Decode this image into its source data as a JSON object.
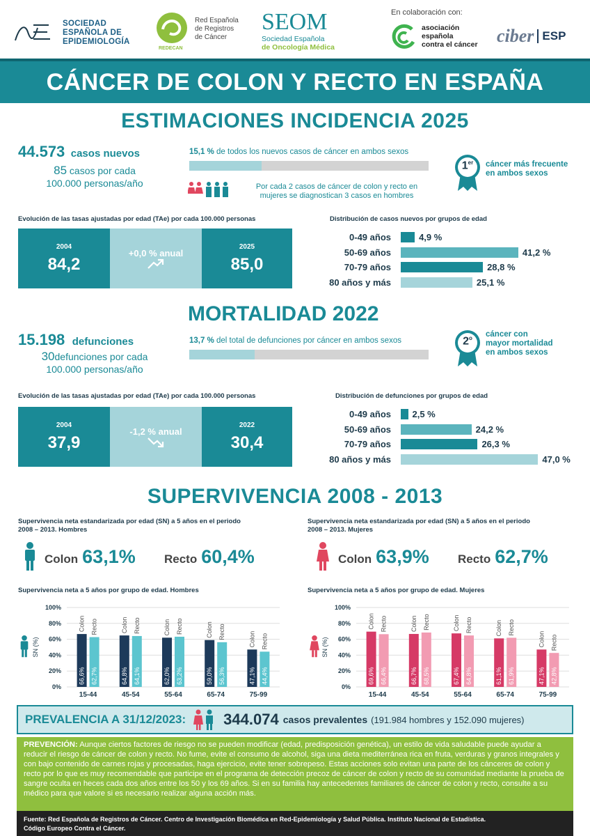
{
  "logos": {
    "see": [
      "SOCIEDAD",
      "ESPAÑOLA DE",
      "EPIDEMIOLOGÍA"
    ],
    "redecan": [
      "Red Española",
      "de Registros",
      "de Cáncer"
    ],
    "redecan_tag": "REDECAN",
    "seom_main": "SEOM",
    "seom_sub": [
      "Sociedad Española",
      "de Oncología Médica"
    ],
    "collab_label": "En colaboración con:",
    "aecc": [
      "asociación",
      "española",
      "contra el cáncer"
    ],
    "ciber": "ciber",
    "ciber_esp": "ESP"
  },
  "title": "CÁNCER DE COLON Y RECTO EN ESPAÑA",
  "incidence": {
    "heading": "ESTIMACIONES INCIDENCIA 2025",
    "cases": "44.573",
    "cases_label": "casos nuevos",
    "rate_num": "85",
    "rate_label": "casos por cada",
    "rate_label2": "100.000 personas/año",
    "pct": "15,1 %",
    "pct_text": "de todos los nuevos casos de cáncer en ambos sexos",
    "pct_fraction": 0.151,
    "ratio_text": [
      "Por cada 2 casos de cáncer de colon y recto en",
      "mujeres se diagnostican 3 casos en hombres"
    ],
    "rank": "1",
    "rank_sup": "er",
    "rank_text": [
      "cáncer más frecuente",
      "en ambos sexos"
    ],
    "trend_title": "Evolución de las tasas ajustadas por edad (TAe) por cada 100.000 personas",
    "year_a": "2004",
    "val_a": "84,2",
    "change": "+0,0 % anual",
    "year_b": "2025",
    "val_b": "85,0",
    "dist_title": "Distribución de casos nuevos por grupos de edad",
    "dist": [
      {
        "label": "0-49 años",
        "value": 4.9,
        "text": "4,9 %"
      },
      {
        "label": "50-69 años",
        "value": 41.2,
        "text": "41,2 %"
      },
      {
        "label": "70-79 años",
        "value": 28.8,
        "text": "28,8 %"
      },
      {
        "label": "80 años y más",
        "value": 25.1,
        "text": "25,1 %"
      }
    ]
  },
  "mortality": {
    "heading": "MORTALIDAD 2022",
    "deaths": "15.198",
    "deaths_label": "defunciones",
    "rate_num": "30",
    "rate_label": "defunciones por cada",
    "rate_label2": "100.000 personas/año",
    "pct": "13,7 %",
    "pct_text": "del total de defunciones por cáncer en ambos sexos",
    "pct_fraction": 0.137,
    "rank": "2",
    "rank_sup": "o",
    "rank_text": [
      "cáncer con",
      "mayor mortalidad",
      "en ambos sexos"
    ],
    "trend_title": "Evolución de las tasas ajustadas por edad (TAe) por cada 100.000 personas",
    "year_a": "2004",
    "val_a": "37,9",
    "change": "-1,2 % anual",
    "year_b": "2022",
    "val_b": "30,4",
    "dist_title": "Distribución de defunciones por grupos de edad",
    "dist": [
      {
        "label": "0-49 años",
        "value": 2.5,
        "text": "2,5 %"
      },
      {
        "label": "50-69 años",
        "value": 24.2,
        "text": "24,2 %"
      },
      {
        "label": "70-79 años",
        "value": 26.3,
        "text": "26,3 %"
      },
      {
        "label": "80 años y más",
        "value": 47.0,
        "text": "47,0 %"
      }
    ]
  },
  "survival": {
    "heading": "SUPERVIVENCIA 2008 - 2013",
    "men_title": [
      "Supervivencia neta estandarizada por edad (SN) a 5 años en el periodo",
      "2008 – 2013.  Hombres"
    ],
    "women_title": [
      "Supervivencia neta estandarizada por edad (SN) a 5 años en el periodo",
      "2008 – 2013.  Mujeres"
    ],
    "colon_label": "Colon",
    "recto_label": "Recto",
    "men_colon": "63,1%",
    "men_recto": "60,4%",
    "women_colon": "63,9%",
    "women_recto": "62,7%",
    "men_chart_title": "Supervivencia neta a 5 años por grupo de edad. Hombres",
    "women_chart_title": "Supervivencia neta a 5 años por grupo de edad. Mujeres"
  },
  "chart_data": [
    {
      "type": "bar",
      "title": "Supervivencia neta a 5 años por grupo de edad. Hombres",
      "ylabel": "SN (%)",
      "ylim": [
        0,
        100
      ],
      "yticks": [
        "0%",
        "20%",
        "40%",
        "60%",
        "80%",
        "100%"
      ],
      "categories": [
        "15-44",
        "45-54",
        "55-64",
        "65-74",
        "75-99"
      ],
      "series": [
        {
          "name": "Colon",
          "values": [
            66.6,
            64.8,
            62.0,
            59.0,
            47.1
          ],
          "labels": [
            "66,6%",
            "64,8%",
            "62,0%",
            "59,0%",
            "47,1%"
          ],
          "color": "#1d3a5a"
        },
        {
          "name": "Recto",
          "values": [
            62.7,
            64.1,
            63.2,
            56.3,
            44.4
          ],
          "labels": [
            "62,7%",
            "64,1%",
            "63,2%",
            "56,3%",
            "44,4%"
          ],
          "color": "#5cc5cf"
        }
      ]
    },
    {
      "type": "bar",
      "title": "Supervivencia neta a 5 años por grupo de edad. Mujeres",
      "ylabel": "SN (%)",
      "ylim": [
        0,
        100
      ],
      "yticks": [
        "0%",
        "20%",
        "40%",
        "60%",
        "80%",
        "100%"
      ],
      "categories": [
        "15-44",
        "45-54",
        "55-64",
        "65-74",
        "75-99"
      ],
      "series": [
        {
          "name": "Colon",
          "values": [
            69.6,
            66.7,
            67.4,
            61.1,
            47.1
          ],
          "labels": [
            "69,6%",
            "66,7%",
            "67,4%",
            "61,1%",
            "47,1%"
          ],
          "color": "#d63a66"
        },
        {
          "name": "Recto",
          "values": [
            66.4,
            68.5,
            64.8,
            61.9,
            42.8
          ],
          "labels": [
            "66,4%",
            "68,5%",
            "64,8%",
            "61,9%",
            "42,8%"
          ],
          "color": "#f29bb2"
        }
      ]
    }
  ],
  "prevalence": {
    "label": "PREVALENCIA A 31/12/2023:",
    "value": "344.074",
    "value_label": "casos prevalentes",
    "detail": "(191.984 hombres y 152.090 mujeres)"
  },
  "prevention": {
    "label": "PREVENCIÓN:",
    "text": "Aunque ciertos factores de riesgo no se pueden modificar (edad, predisposición genética), un estilo de vida saludable puede ayudar a reducir el riesgo de cáncer de colon y recto. No fume, evite el consumo de alcohol, siga una dieta mediterránea rica en fruta, verduras y granos integrales y con bajo contenido de carnes rojas y procesadas, haga ejercicio, evite tener sobrepeso. Estas acciones solo evitan una parte de los cánceres de colon y recto por lo que es muy recomendable que participe en el programa de detección precoz de cáncer de colon y recto de su comunidad mediante la prueba de sangre oculta en heces cada dos años entre los 50 y los 69 años. Si en su familia hay antecedentes familiares de cáncer de colon y recto, consulte a su médico para que valore si es necesario realizar alguna acción más."
  },
  "footer": {
    "line1": "Fuente: Red Española de Registros de Cáncer. Centro de Investigación Biomédica en Red-Epidemiología y Salud Pública. Instituto Nacional de Estadística.",
    "line2": "Código Europeo Contra el Cáncer."
  },
  "colors": {
    "teal": "#1a8a96",
    "teal_light": "#a5d4da",
    "navy": "#1d3a4a",
    "green": "#8fbf3e"
  }
}
